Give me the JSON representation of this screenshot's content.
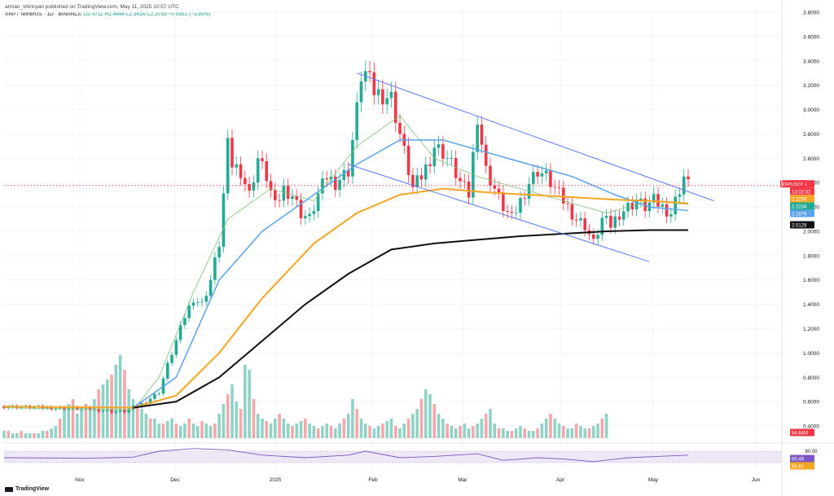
{
  "header": {
    "publisher": "arman_shirinyan published on TradingView.com, May 11, 2025 10:57 UTC",
    "symbol": "XRP / TetherUS · 1D · BINANCE",
    "ohlc": "O2.4711 H2.4844 L2.3416 C2.3759 −0.0952 (−3.85%)"
  },
  "footer": {
    "brand": "TradingView"
  },
  "colors": {
    "up": "#22ab94",
    "down": "#f23645",
    "volume_up": "#8fd3c8",
    "volume_down": "#f7a7a9",
    "channel": "#5b7cf5",
    "ma_fast": "#7cc576",
    "ma_mid": "#5aa3ea",
    "ma_orange": "#f5a623",
    "ma_black": "#111111",
    "rsi": "#7e57c2",
    "rsi_band": "#ede7f6"
  },
  "chart_data": {
    "type": "candlestick",
    "title": "XRP / TetherUS · 1D · BINANCE",
    "x_ticks": [
      "Nov",
      "Dec",
      "2025",
      "Feb",
      "Mar",
      "Apr",
      "May",
      "Jun"
    ],
    "y_ticks": [
      "0.4000",
      "0.6000",
      "0.8000",
      "1.0000",
      "1.2000",
      "1.4000",
      "1.6000",
      "1.8000",
      "2.0000",
      "2.2000",
      "2.4000",
      "2.6000",
      "2.8000",
      "3.0000",
      "3.2000",
      "3.4000",
      "3.6000",
      "3.8000"
    ],
    "ylim": [
      0.3,
      3.82
    ],
    "price_label": {
      "text": "XRPUSDT",
      "value": "2.3759",
      "countdown": "13:02:32"
    },
    "ma_labels": [
      {
        "value": "2.2258",
        "color": "#f5a623"
      },
      {
        "value": "2.2234",
        "color": "#22ab94"
      },
      {
        "value": "2.1679",
        "color": "#5aa3ea"
      },
      {
        "value": "2.0129",
        "color": "#111111"
      }
    ],
    "volume_label": "94.64M",
    "rsi_ticks": [
      "80.00"
    ],
    "rsi_labels": [
      {
        "value": "60.49",
        "color": "#7e57c2"
      },
      {
        "value": "54.81",
        "color": "#f5a623"
      }
    ],
    "close_series": [
      [
        0,
        0.56
      ],
      [
        10,
        0.55
      ],
      [
        20,
        0.54
      ],
      [
        25,
        0.52
      ],
      [
        28,
        0.52
      ],
      [
        30,
        0.55
      ],
      [
        33,
        0.6
      ],
      [
        36,
        0.68
      ],
      [
        38,
        0.9
      ],
      [
        40,
        1.1
      ],
      [
        42,
        1.3
      ],
      [
        44,
        1.45
      ],
      [
        46,
        1.4
      ],
      [
        48,
        1.6
      ],
      [
        50,
        1.9
      ],
      [
        51,
        2.3
      ],
      [
        52,
        2.7
      ],
      [
        53,
        2.55
      ],
      [
        55,
        2.5
      ],
      [
        57,
        2.3
      ],
      [
        59,
        2.6
      ],
      [
        61,
        2.45
      ],
      [
        63,
        2.2
      ],
      [
        65,
        2.35
      ],
      [
        67,
        2.3
      ],
      [
        69,
        2.15
      ],
      [
        71,
        2.1
      ],
      [
        73,
        2.3
      ],
      [
        75,
        2.45
      ],
      [
        77,
        2.4
      ],
      [
        80,
        2.5
      ],
      [
        82,
        3.0
      ],
      [
        83,
        3.28
      ],
      [
        84,
        3.3
      ],
      [
        86,
        3.15
      ],
      [
        88,
        3.12
      ],
      [
        90,
        3.1
      ],
      [
        92,
        2.8
      ],
      [
        94,
        2.5
      ],
      [
        95,
        2.35
      ],
      [
        97,
        2.45
      ],
      [
        99,
        2.6
      ],
      [
        100,
        2.7
      ],
      [
        102,
        2.65
      ],
      [
        104,
        2.55
      ],
      [
        106,
        2.4
      ],
      [
        108,
        2.3
      ],
      [
        110,
        2.95
      ],
      [
        112,
        2.5
      ],
      [
        114,
        2.35
      ],
      [
        116,
        2.2
      ],
      [
        118,
        2.1
      ],
      [
        120,
        2.25
      ],
      [
        122,
        2.4
      ],
      [
        124,
        2.5
      ],
      [
        126,
        2.45
      ],
      [
        128,
        2.35
      ],
      [
        130,
        2.25
      ],
      [
        133,
        2.1
      ],
      [
        135,
        2.05
      ],
      [
        137,
        1.9
      ],
      [
        139,
        2.1
      ],
      [
        141,
        2.05
      ],
      [
        143,
        2.15
      ],
      [
        145,
        2.2
      ],
      [
        147,
        2.25
      ],
      [
        149,
        2.2
      ],
      [
        151,
        2.25
      ],
      [
        153,
        2.2
      ],
      [
        155,
        2.15
      ],
      [
        157,
        2.35
      ],
      [
        158,
        2.45
      ],
      [
        159,
        2.38
      ]
    ],
    "channel_upper": [
      [
        82,
        3.3
      ],
      [
        165,
        2.25
      ]
    ],
    "channel_lower": [
      [
        80,
        2.55
      ],
      [
        150,
        1.75
      ]
    ],
    "ma_fast": [
      [
        0,
        0.55
      ],
      [
        30,
        0.53
      ],
      [
        36,
        0.8
      ],
      [
        44,
        1.5
      ],
      [
        52,
        2.1
      ],
      [
        62,
        2.35
      ],
      [
        72,
        2.25
      ],
      [
        82,
        2.7
      ],
      [
        92,
        2.95
      ],
      [
        100,
        2.6
      ],
      [
        110,
        2.45
      ],
      [
        120,
        2.35
      ],
      [
        130,
        2.25
      ],
      [
        140,
        2.15
      ],
      [
        150,
        2.25
      ],
      [
        159,
        2.22
      ]
    ],
    "ma_mid": [
      [
        0,
        0.56
      ],
      [
        30,
        0.55
      ],
      [
        40,
        0.8
      ],
      [
        50,
        1.6
      ],
      [
        60,
        2.0
      ],
      [
        72,
        2.3
      ],
      [
        82,
        2.55
      ],
      [
        92,
        2.75
      ],
      [
        102,
        2.75
      ],
      [
        112,
        2.65
      ],
      [
        122,
        2.55
      ],
      [
        132,
        2.45
      ],
      [
        142,
        2.3
      ],
      [
        150,
        2.2
      ],
      [
        159,
        2.17
      ]
    ],
    "ma_orange": [
      [
        0,
        0.56
      ],
      [
        30,
        0.55
      ],
      [
        40,
        0.65
      ],
      [
        50,
        1.0
      ],
      [
        60,
        1.45
      ],
      [
        72,
        1.9
      ],
      [
        82,
        2.15
      ],
      [
        92,
        2.3
      ],
      [
        102,
        2.35
      ],
      [
        112,
        2.32
      ],
      [
        122,
        2.3
      ],
      [
        132,
        2.28
      ],
      [
        142,
        2.26
      ],
      [
        150,
        2.25
      ],
      [
        159,
        2.23
      ]
    ],
    "ma_black": [
      [
        30,
        0.55
      ],
      [
        40,
        0.6
      ],
      [
        50,
        0.8
      ],
      [
        60,
        1.1
      ],
      [
        70,
        1.4
      ],
      [
        80,
        1.65
      ],
      [
        90,
        1.85
      ],
      [
        100,
        1.9
      ],
      [
        110,
        1.93
      ],
      [
        120,
        1.96
      ],
      [
        130,
        1.98
      ],
      [
        140,
        2.0
      ],
      [
        150,
        2.01
      ],
      [
        159,
        2.01
      ]
    ],
    "volume": [
      3,
      3,
      2,
      2,
      3,
      2,
      2,
      2,
      2,
      3,
      3,
      4,
      5,
      8,
      12,
      14,
      16,
      10,
      12,
      14,
      12,
      16,
      20,
      22,
      24,
      26,
      30,
      34,
      28,
      20,
      16,
      14,
      12,
      10,
      8,
      8,
      6,
      6,
      7,
      8,
      6,
      5,
      6,
      8,
      6,
      5,
      7,
      6,
      5,
      6,
      10,
      14,
      18,
      22,
      15,
      12,
      30,
      28,
      16,
      10,
      8,
      7,
      6,
      8,
      10,
      8,
      6,
      5,
      6,
      7,
      8,
      6,
      5,
      4,
      5,
      6,
      5,
      4,
      6,
      8,
      10,
      16,
      12,
      8,
      6,
      5,
      4,
      5,
      6,
      7,
      8,
      5,
      4,
      6,
      8,
      10,
      12,
      16,
      20,
      18,
      14,
      10,
      8,
      6,
      5,
      4,
      5,
      6,
      4,
      5,
      6,
      8,
      10,
      12,
      6,
      4,
      4,
      3,
      3,
      4,
      5,
      4,
      3,
      3,
      4,
      6,
      8,
      10,
      8,
      6,
      5,
      4,
      4,
      6,
      5,
      4,
      4,
      5,
      6,
      8,
      10
    ],
    "rsi": [
      [
        0,
        50
      ],
      [
        20,
        48
      ],
      [
        30,
        52
      ],
      [
        36,
        75
      ],
      [
        44,
        85
      ],
      [
        52,
        80
      ],
      [
        60,
        60
      ],
      [
        70,
        50
      ],
      [
        80,
        60
      ],
      [
        84,
        75
      ],
      [
        92,
        50
      ],
      [
        100,
        55
      ],
      [
        110,
        65
      ],
      [
        116,
        40
      ],
      [
        124,
        50
      ],
      [
        130,
        45
      ],
      [
        137,
        35
      ],
      [
        145,
        50
      ],
      [
        152,
        55
      ],
      [
        159,
        60
      ]
    ]
  }
}
